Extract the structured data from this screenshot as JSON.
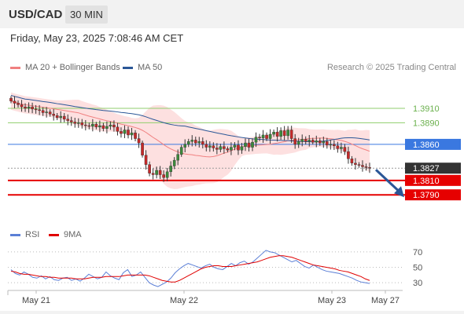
{
  "header": {
    "symbol": "USD/CAD",
    "timeframe": "30 MIN",
    "datetime": "Friday, May 23, 2025 7:08:46 AM CET"
  },
  "legend": {
    "ma20_label": "MA 20 + Bollinger Bands",
    "ma20_color": "#f08080",
    "ma50_label": "MA 50",
    "ma50_color": "#2b5797",
    "credit": "Research © 2025 Trading Central"
  },
  "rsi_legend": {
    "rsi_label": "RSI",
    "rsi_color": "#5b7fd6",
    "ma_label": "9MA",
    "ma_color": "#e00000"
  },
  "chart_data": [
    {
      "type": "candlestick",
      "price_axis_range": [
        1.3775,
        1.3935
      ],
      "x_tick_labels": [
        "May 21",
        "May 22",
        "May 23",
        "May 27"
      ],
      "levels": [
        {
          "value": 1.391,
          "label": "1.3910",
          "color": "#8fce6c"
        },
        {
          "value": 1.389,
          "label": "1.3890",
          "color": "#8fce6c"
        },
        {
          "value": 1.386,
          "label": "1.3860",
          "color": "#3a78e0"
        },
        {
          "value": 1.3827,
          "label": "1.3827",
          "color": "#333333"
        },
        {
          "value": 1.381,
          "label": "1.3810",
          "color": "#e60000"
        },
        {
          "value": 1.379,
          "label": "1.3790",
          "color": "#e60000"
        }
      ],
      "forecast_arrow": {
        "from": 1.3827,
        "to": 1.379,
        "color": "#2b5797"
      },
      "closes": [
        1.392,
        1.3917,
        1.3915,
        1.3912,
        1.391,
        1.3912,
        1.3909,
        1.3908,
        1.3907,
        1.3904,
        1.3905,
        1.3902,
        1.39,
        1.3897,
        1.3899,
        1.3895,
        1.3893,
        1.3891,
        1.3889,
        1.389,
        1.3887,
        1.3886,
        1.3885,
        1.3888,
        1.3884,
        1.3886,
        1.3882,
        1.3885,
        1.3887,
        1.3884,
        1.3878,
        1.3875,
        1.388,
        1.3873,
        1.3876,
        1.3868,
        1.3862,
        1.3845,
        1.3832,
        1.382,
        1.3818,
        1.3824,
        1.3818,
        1.3814,
        1.3822,
        1.383,
        1.3838,
        1.3846,
        1.3856,
        1.386,
        1.3864,
        1.3866,
        1.3862,
        1.3864,
        1.386,
        1.3856,
        1.3858,
        1.3855,
        1.3853,
        1.3857,
        1.3854,
        1.3852,
        1.3856,
        1.3859,
        1.3852,
        1.3857,
        1.3862,
        1.3856,
        1.3863,
        1.387,
        1.3869,
        1.3873,
        1.3868,
        1.3874,
        1.3877,
        1.3871,
        1.3879,
        1.3872,
        1.388,
        1.3868,
        1.386,
        1.3864,
        1.3867,
        1.3864,
        1.3866,
        1.3863,
        1.3865,
        1.3862,
        1.3864,
        1.3859,
        1.386,
        1.3858,
        1.3854,
        1.3856,
        1.385,
        1.384,
        1.3834,
        1.3832,
        1.3831,
        1.3829,
        1.3828,
        1.3827
      ]
    },
    {
      "type": "line",
      "title": "RSI",
      "y_ticks": [
        70,
        50,
        30
      ],
      "ylim": [
        20,
        78
      ],
      "series": [
        {
          "name": "RSI",
          "values": [
            47,
            42,
            40,
            44,
            41,
            37,
            36,
            39,
            35,
            38,
            34,
            33,
            36,
            37,
            33,
            35,
            32,
            36,
            41,
            38,
            35,
            37,
            44,
            39,
            36,
            34,
            43,
            47,
            38,
            40,
            44,
            37,
            30,
            27,
            25,
            28,
            31,
            36,
            43,
            48,
            52,
            55,
            53,
            51,
            49,
            52,
            54,
            50,
            48,
            47,
            51,
            55,
            52,
            56,
            58,
            54,
            57,
            62,
            67,
            72,
            70,
            69,
            66,
            63,
            60,
            57,
            59,
            55,
            51,
            49,
            53,
            50,
            47,
            45,
            44,
            43,
            42,
            40,
            38,
            36,
            33,
            31,
            30,
            29
          ]
        },
        {
          "name": "9MA",
          "values": [
            45,
            44,
            42,
            41,
            41,
            40,
            39,
            38,
            38,
            37,
            37,
            36,
            36,
            36,
            36,
            35,
            35,
            35,
            36,
            37,
            37,
            37,
            38,
            38,
            38,
            38,
            39,
            40,
            40,
            40,
            40,
            40,
            39,
            37,
            35,
            33,
            32,
            31,
            31,
            33,
            36,
            39,
            42,
            45,
            48,
            50,
            51,
            52,
            52,
            51,
            51,
            51,
            52,
            53,
            54,
            55,
            56,
            57,
            59,
            61,
            63,
            64,
            65,
            65,
            64,
            63,
            61,
            59,
            57,
            55,
            53,
            52,
            51,
            50,
            49,
            48,
            46,
            45,
            44,
            42,
            40,
            38,
            35,
            33
          ]
        }
      ]
    }
  ]
}
